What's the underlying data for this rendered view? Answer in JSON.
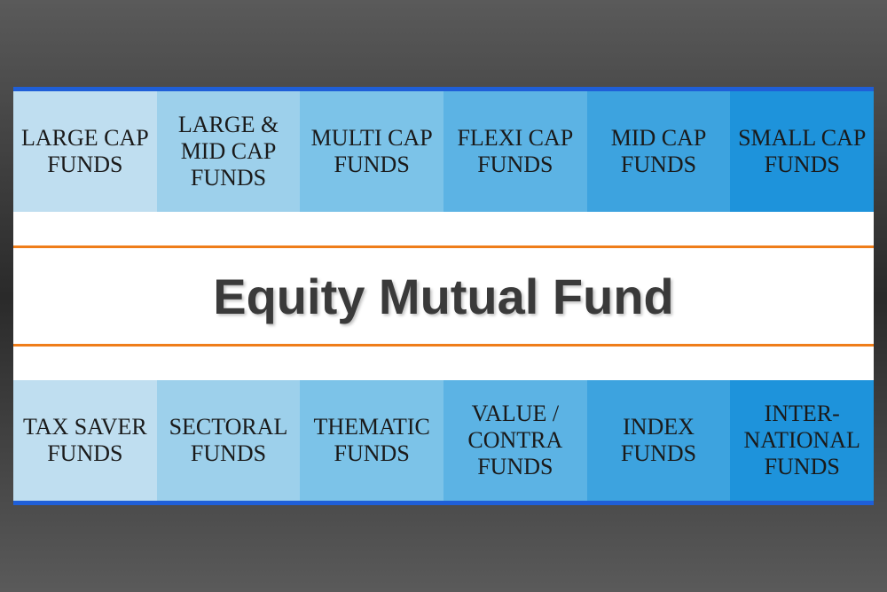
{
  "type": "infographic",
  "title": "Equity Mutual Fund",
  "background_gradient": [
    "#5a5a5a",
    "#2a2a2a",
    "#5a5a5a"
  ],
  "container_bg": "#ffffff",
  "row_border_color": "#1f5fd8",
  "orange_line_color": "#ef7d1a",
  "title_color": "#3a3a3a",
  "title_fontsize": 56,
  "cell_text_color": "#1a1a1a",
  "cell_fontsize": 26,
  "top_row": [
    {
      "label": "LARGE CAP FUNDS",
      "bg": "#bfdef0"
    },
    {
      "label": "LARGE & MID CAP FUNDS",
      "bg": "#9dd0eb"
    },
    {
      "label": "MULTI CAP FUNDS",
      "bg": "#7cc3e8"
    },
    {
      "label": "FLEXI CAP FUNDS",
      "bg": "#5cb3e4"
    },
    {
      "label": "MID CAP FUNDS",
      "bg": "#3da3df"
    },
    {
      "label": "SMALL CAP FUNDS",
      "bg": "#1e93db"
    }
  ],
  "bottom_row": [
    {
      "label": "TAX SAVER FUNDS",
      "bg": "#bfdef0"
    },
    {
      "label": "SECTORAL FUNDS",
      "bg": "#9dd0eb"
    },
    {
      "label": "THEMATIC FUNDS",
      "bg": "#7cc3e8"
    },
    {
      "label": "VALUE / CONTRA FUNDS",
      "bg": "#5cb3e4"
    },
    {
      "label": "INDEX FUNDS",
      "bg": "#3da3df"
    },
    {
      "label": "INTER-NATIONAL FUNDS",
      "bg": "#1e93db"
    }
  ]
}
